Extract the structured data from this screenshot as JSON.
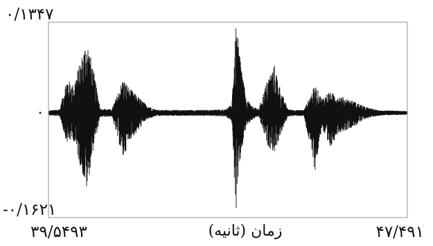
{
  "chart_data": {
    "type": "line",
    "title": "",
    "xlabel": "زمان (ثانیه)",
    "ylabel": "",
    "xlim": [
      39.5493,
      47.491
    ],
    "ylim": [
      -0.1621,
      0.1347
    ],
    "x_tick_labels": [
      "۳۹/۵۴۹۳",
      "۴۷/۴۹۱"
    ],
    "y_tick_labels": [
      "۰/۱۳۴۷",
      "۰",
      "-۰/۱۶۲۱"
    ],
    "grid": false,
    "legend": "none",
    "series": [
      {
        "color": "#111111",
        "envelope_x": [
          39.55,
          39.8,
          39.95,
          40.1,
          40.25,
          40.4,
          40.55,
          40.7,
          40.95,
          41.2,
          41.35,
          41.5,
          41.7,
          41.9,
          42.05,
          42.3,
          42.7,
          43.1,
          43.45,
          43.6,
          43.7,
          43.8,
          43.92,
          44.05,
          44.2,
          44.4,
          44.55,
          44.7,
          44.85,
          45.0,
          45.2,
          45.45,
          45.6,
          45.75,
          45.95,
          46.15,
          46.35,
          46.55,
          46.75,
          46.95,
          47.2,
          47.49
        ],
        "envelope_max": [
          0.002,
          0.004,
          0.05,
          0.04,
          0.075,
          0.11,
          0.06,
          0.005,
          0.004,
          0.05,
          0.035,
          0.025,
          0.012,
          0.004,
          0.003,
          0.003,
          0.003,
          0.003,
          0.004,
          0.01,
          0.13,
          0.08,
          0.02,
          0.01,
          0.004,
          0.05,
          0.07,
          0.03,
          0.004,
          0.003,
          0.003,
          0.04,
          0.02,
          0.03,
          0.025,
          0.02,
          0.015,
          0.008,
          0.004,
          0.002,
          0.002,
          0.001
        ],
        "envelope_min": [
          -0.002,
          -0.004,
          -0.045,
          -0.04,
          -0.08,
          -0.12,
          -0.05,
          -0.005,
          -0.004,
          -0.07,
          -0.04,
          -0.03,
          -0.01,
          -0.004,
          -0.003,
          -0.003,
          -0.003,
          -0.003,
          -0.004,
          -0.01,
          -0.158,
          -0.07,
          -0.02,
          -0.01,
          -0.004,
          -0.05,
          -0.06,
          -0.03,
          -0.004,
          -0.003,
          -0.003,
          -0.09,
          -0.02,
          -0.06,
          -0.03,
          -0.025,
          -0.018,
          -0.008,
          -0.004,
          -0.002,
          -0.002,
          -0.001
        ]
      }
    ]
  }
}
